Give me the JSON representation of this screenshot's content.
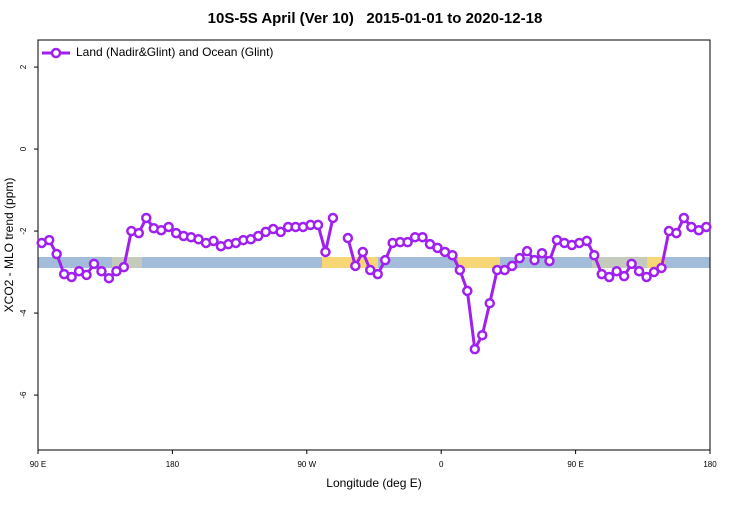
{
  "chart_data": {
    "type": "line",
    "title": "10S-5S April (Ver 10)   2015-01-01 to 2020-12-18",
    "xlabel": "Longitude (deg E)",
    "ylabel": "XCO2 - MLO trend (ppm)",
    "x": [
      92.5,
      97.5,
      102.5,
      107.5,
      112.5,
      117.5,
      122.5,
      127.5,
      132.5,
      137.5,
      142.5,
      147.5,
      152.5,
      157.5,
      162.5,
      167.5,
      172.5,
      177.5,
      182.5,
      187.5,
      192.5,
      197.5,
      202.5,
      207.5,
      212.5,
      217.5,
      222.5,
      227.5,
      232.5,
      237.5,
      242.5,
      247.5,
      252.5,
      257.5,
      262.5,
      267.5,
      272.5,
      277.5,
      282.5,
      287.5,
      292.5,
      297.5,
      302.5,
      307.5,
      312.5,
      317.5,
      322.5,
      327.5,
      332.5,
      337.5,
      342.5,
      347.5,
      352.5,
      357.5,
      362.5,
      367.5,
      372.5,
      377.5,
      382.5,
      387.5,
      392.5,
      397.5,
      402.5,
      407.5,
      412.5,
      417.5,
      422.5,
      427.5,
      432.5,
      437.5,
      442.5,
      447.5,
      452.5,
      457.5,
      462.5,
      467.5,
      472.5,
      477.5,
      482.5,
      487.5,
      492.5,
      497.5,
      502.5,
      507.5,
      512.5,
      517.5,
      522.5,
      527.5,
      532.5,
      537.5
    ],
    "series": [
      {
        "name": "Land (Nadir&Glint) and Ocean (Glint)",
        "color": "#a020f0",
        "values": [
          -2.29,
          -2.22,
          -2.56,
          -3.05,
          -3.12,
          -2.98,
          -3.07,
          -2.8,
          -2.98,
          -3.15,
          -2.98,
          -2.88,
          -2.0,
          -2.05,
          -1.68,
          -1.93,
          -1.98,
          -1.9,
          -2.05,
          -2.12,
          -2.15,
          -2.2,
          -2.29,
          -2.24,
          -2.37,
          -2.32,
          -2.29,
          -2.22,
          -2.2,
          -2.12,
          -2.02,
          -1.95,
          -2.02,
          -1.9,
          -1.9,
          -1.9,
          -1.85,
          -1.85,
          -2.51,
          -1.68,
          null,
          -2.17,
          -2.85,
          -2.51,
          -2.95,
          -3.05,
          -2.71,
          -2.29,
          -2.27,
          -2.27,
          -2.15,
          -2.15,
          -2.32,
          -2.41,
          -2.51,
          -2.59,
          -2.95,
          -3.46,
          -4.88,
          -4.54,
          -3.76,
          -2.95,
          -2.95,
          -2.85,
          -2.66,
          -2.49,
          -2.71,
          -2.54,
          -2.73,
          -2.22,
          -2.29,
          -2.34,
          -2.29,
          -2.24,
          -2.59,
          -3.05,
          -3.12,
          -2.98,
          -3.1,
          -2.8,
          -2.98,
          -3.12,
          -3.0,
          -2.9,
          -2.0,
          -2.05,
          -1.68,
          -1.9,
          -1.98,
          -1.9
        ]
      }
    ],
    "xlim": [
      90,
      540
    ],
    "xticks": [
      {
        "value": 90,
        "label": "90 E"
      },
      180,
      {
        "value": 270,
        "label": "90 W"
      },
      {
        "value": 360,
        "label": "0"
      },
      {
        "value": 450,
        "label": "90 E"
      },
      {
        "value": 540,
        "label": "180"
      }
    ],
    "ylim": [
      -7.34,
      2.66
    ],
    "yticks": [
      2,
      0,
      -2,
      -4,
      -6
    ],
    "legend": "top-left"
  }
}
